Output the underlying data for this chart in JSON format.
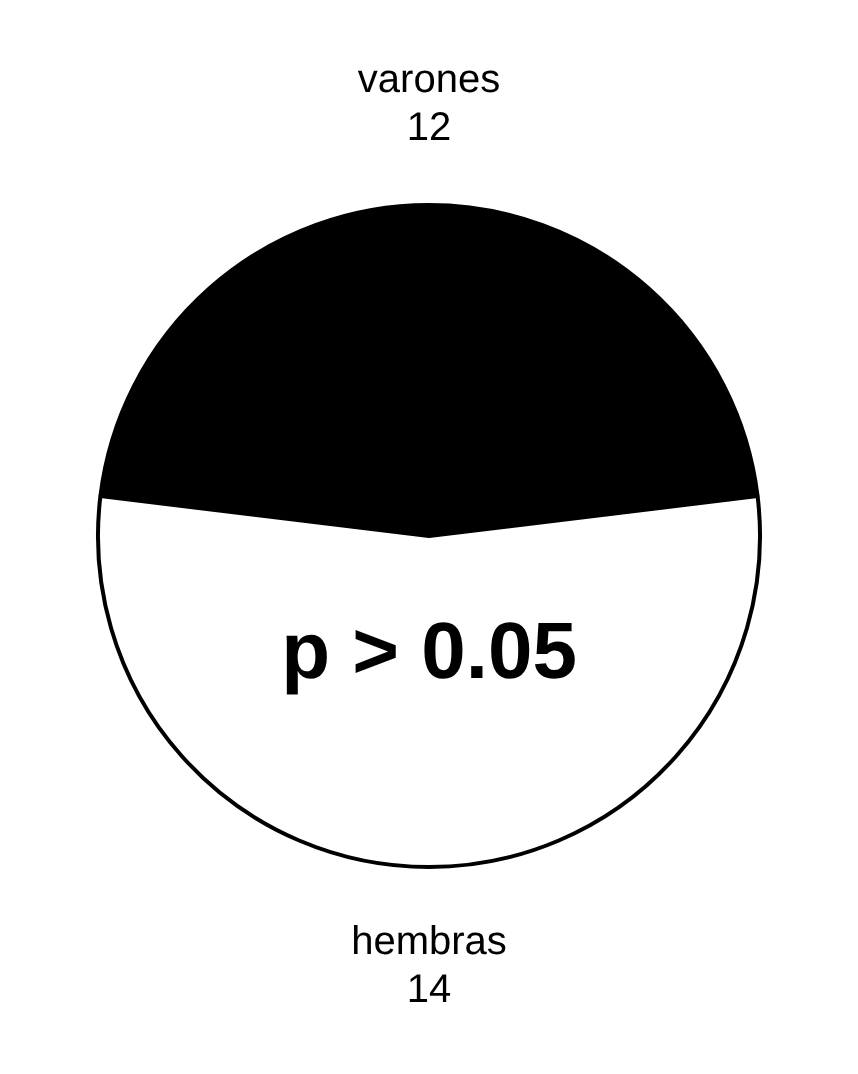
{
  "chart_data": {
    "type": "pie",
    "categories": [
      "varones",
      "hembras"
    ],
    "values": [
      12,
      14
    ],
    "colors": [
      "#000000",
      "#ffffff"
    ],
    "data_labels": true,
    "annotations": [
      "p > 0.05"
    ]
  }
}
